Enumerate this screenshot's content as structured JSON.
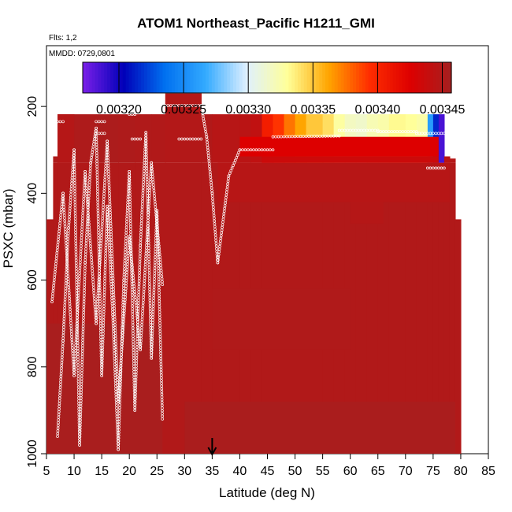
{
  "chart_data": {
    "type": "heatmap",
    "title": "ATOM1 Northeast_Pacific H1211_GMI",
    "flights_note": "Flts: 1,2",
    "date_note": "MMDD: 0729,0801",
    "xlabel": "Latitude (deg N)",
    "ylabel": "PSXC (mbar)",
    "xlim": [
      5,
      85
    ],
    "ylim": [
      1000,
      60
    ],
    "y_reversed": true,
    "x_ticks": [
      "5",
      "10",
      "15",
      "20",
      "25",
      "30",
      "35",
      "40",
      "45",
      "50",
      "55",
      "60",
      "65",
      "70",
      "75",
      "80",
      "85"
    ],
    "y_ticks": [
      "200",
      "400",
      "600",
      "800",
      "1000"
    ],
    "colorbar": {
      "min": 0.003172,
      "max": 0.003457,
      "tick_values": [
        0.0032,
        0.00325,
        0.0033,
        0.00335,
        0.0034,
        0.00345
      ],
      "tick_labels": [
        "0.00320",
        "0.00325",
        "0.00330",
        "0.00335",
        "0.00340",
        "0.00345"
      ],
      "colors": [
        "#7b1fe8",
        "#0000b8",
        "#0070f0",
        "#33aaff",
        "#dff0ff",
        "#ffff99",
        "#ffa500",
        "#ff2d00",
        "#dd0000",
        "#a52020"
      ]
    },
    "marker_latitude": 35,
    "base_value": 0.00345,
    "columns": [
      {
        "x0": 5,
        "x1": 6.2,
        "top": 460,
        "value": 0.003452
      },
      {
        "x0": 6.2,
        "x1": 7,
        "top": 315,
        "value": 0.003452
      },
      {
        "x0": 7,
        "x1": 10,
        "top": 218,
        "value": 0.003453
      },
      {
        "x0": 10,
        "x1": 14,
        "top": 218,
        "value": 0.003452
      },
      {
        "x0": 14,
        "x1": 18,
        "top": 218,
        "value": 0.003453
      },
      {
        "x0": 18,
        "x1": 21,
        "top": 218,
        "value": 0.003452
      },
      {
        "x0": 21,
        "x1": 24,
        "top": 218,
        "value": 0.003451
      },
      {
        "x0": 24,
        "x1": 26.5,
        "top": 218,
        "value": 0.00345
      },
      {
        "x0": 26.5,
        "x1": 33,
        "top": 170,
        "value": 0.003449
      },
      {
        "x0": 33,
        "x1": 35,
        "top": 218,
        "value": 0.00345
      },
      {
        "x0": 35,
        "x1": 40,
        "top": 218,
        "value": 0.003447
      },
      {
        "x0": 40,
        "x1": 42,
        "top": 218,
        "value": 0.003445
      },
      {
        "x0": 42,
        "x1": 44,
        "top": 218,
        "value": 0.003442
      },
      {
        "x0": 44,
        "x1": 46,
        "top": 218,
        "value": 0.003405
      },
      {
        "x0": 46,
        "x1": 48,
        "top": 218,
        "value": 0.003392
      },
      {
        "x0": 48,
        "x1": 50,
        "top": 218,
        "value": 0.003375
      },
      {
        "x0": 50,
        "x1": 52,
        "top": 218,
        "value": 0.003362
      },
      {
        "x0": 52,
        "x1": 55,
        "top": 218,
        "value": 0.00335
      },
      {
        "x0": 55,
        "x1": 57,
        "top": 218,
        "value": 0.003342
      },
      {
        "x0": 57,
        "x1": 59,
        "top": 218,
        "value": 0.003328
      },
      {
        "x0": 59,
        "x1": 61,
        "top": 218,
        "value": 0.003318
      },
      {
        "x0": 61,
        "x1": 63,
        "top": 218,
        "value": 0.003315
      },
      {
        "x0": 63,
        "x1": 65,
        "top": 218,
        "value": 0.003322
      },
      {
        "x0": 65,
        "x1": 67,
        "top": 218,
        "value": 0.003325
      },
      {
        "x0": 67,
        "x1": 70,
        "top": 218,
        "value": 0.003332
      },
      {
        "x0": 70,
        "x1": 72,
        "top": 218,
        "value": 0.00333
      },
      {
        "x0": 72,
        "x1": 74,
        "top": 218,
        "value": 0.003326
      },
      {
        "x0": 74,
        "x1": 75,
        "top": 218,
        "value": 0.00326
      },
      {
        "x0": 75,
        "x1": 76,
        "top": 218,
        "value": 0.003215
      },
      {
        "x0": 76,
        "x1": 77,
        "top": 218,
        "value": 0.003185
      },
      {
        "x0": 77,
        "x1": 78,
        "top": 315,
        "value": 0.003445
      },
      {
        "x0": 78,
        "x1": 79,
        "top": 320,
        "value": 0.003448
      },
      {
        "x0": 79,
        "x1": 80,
        "top": 460,
        "value": 0.003452
      }
    ],
    "bands": [
      {
        "x0": 7,
        "x1": 10,
        "p0": 218,
        "p1": 330,
        "value": 0.003448
      },
      {
        "x0": 40,
        "x1": 76,
        "p0": 270,
        "p1": 315,
        "value": 0.003425
      },
      {
        "x0": 44,
        "x1": 76,
        "p0": 315,
        "p1": 330,
        "value": 0.003435
      },
      {
        "x0": 60,
        "x1": 66,
        "p0": 400,
        "p1": 470,
        "value": 0.003448
      },
      {
        "x0": 36,
        "x1": 78,
        "p0": 330,
        "p1": 420,
        "value": 0.003447
      },
      {
        "x0": 35,
        "x1": 60,
        "p0": 620,
        "p1": 760,
        "value": 0.003451
      },
      {
        "x0": 5,
        "x1": 26,
        "p0": 700,
        "p1": 1000,
        "value": 0.003455
      },
      {
        "x0": 30,
        "x1": 79,
        "p0": 880,
        "p1": 1000,
        "value": 0.003454
      }
    ],
    "flight_tracks": [
      {
        "x": [
          26.5,
          33
        ],
        "y": [
          198,
          198
        ]
      },
      {
        "x": [
          33,
          34,
          35,
          36
        ],
        "y": [
          198,
          270,
          400,
          560
        ]
      },
      {
        "x": [
          29,
          33
        ],
        "y": [
          275,
          275
        ]
      },
      {
        "x": [
          36,
          38,
          40
        ],
        "y": [
          560,
          360,
          300
        ]
      },
      {
        "x": [
          40,
          46
        ],
        "y": [
          300,
          300
        ]
      },
      {
        "x": [
          46,
          58
        ],
        "y": [
          270,
          268
        ]
      },
      {
        "x": [
          58,
          65
        ],
        "y": [
          255,
          255
        ]
      },
      {
        "x": [
          65,
          72
        ],
        "y": [
          258,
          258
        ]
      },
      {
        "x": [
          72,
          77
        ],
        "y": [
          262,
          262
        ]
      },
      {
        "x": [
          74,
          77
        ],
        "y": [
          342,
          342
        ]
      },
      {
        "x": [
          7,
          8
        ],
        "y": [
          235,
          235
        ]
      },
      {
        "x": [
          14,
          15.5
        ],
        "y": [
          235,
          235
        ]
      },
      {
        "x": [
          14.5,
          15.5
        ],
        "y": [
          262,
          262
        ]
      },
      {
        "x": [
          20.5,
          22
        ],
        "y": [
          275,
          275
        ]
      },
      {
        "x": [
          20,
          21
        ],
        "y": [
          218,
          218
        ]
      },
      {
        "x": [
          7,
          8,
          9,
          10,
          11,
          12,
          13,
          14,
          15,
          16,
          17,
          18,
          19,
          20,
          21,
          22,
          23,
          24,
          25,
          26
        ],
        "y": [
          960,
          740,
          480,
          300,
          980,
          560,
          330,
          250,
          820,
          430,
          680,
          990,
          600,
          350,
          900,
          520,
          260,
          780,
          440,
          920
        ]
      },
      {
        "x": [
          6,
          8,
          10,
          12,
          14,
          16,
          18,
          20,
          22,
          24,
          26
        ],
        "y": [
          650,
          400,
          820,
          350,
          700,
          280,
          880,
          500,
          760,
          330,
          610
        ]
      }
    ]
  }
}
